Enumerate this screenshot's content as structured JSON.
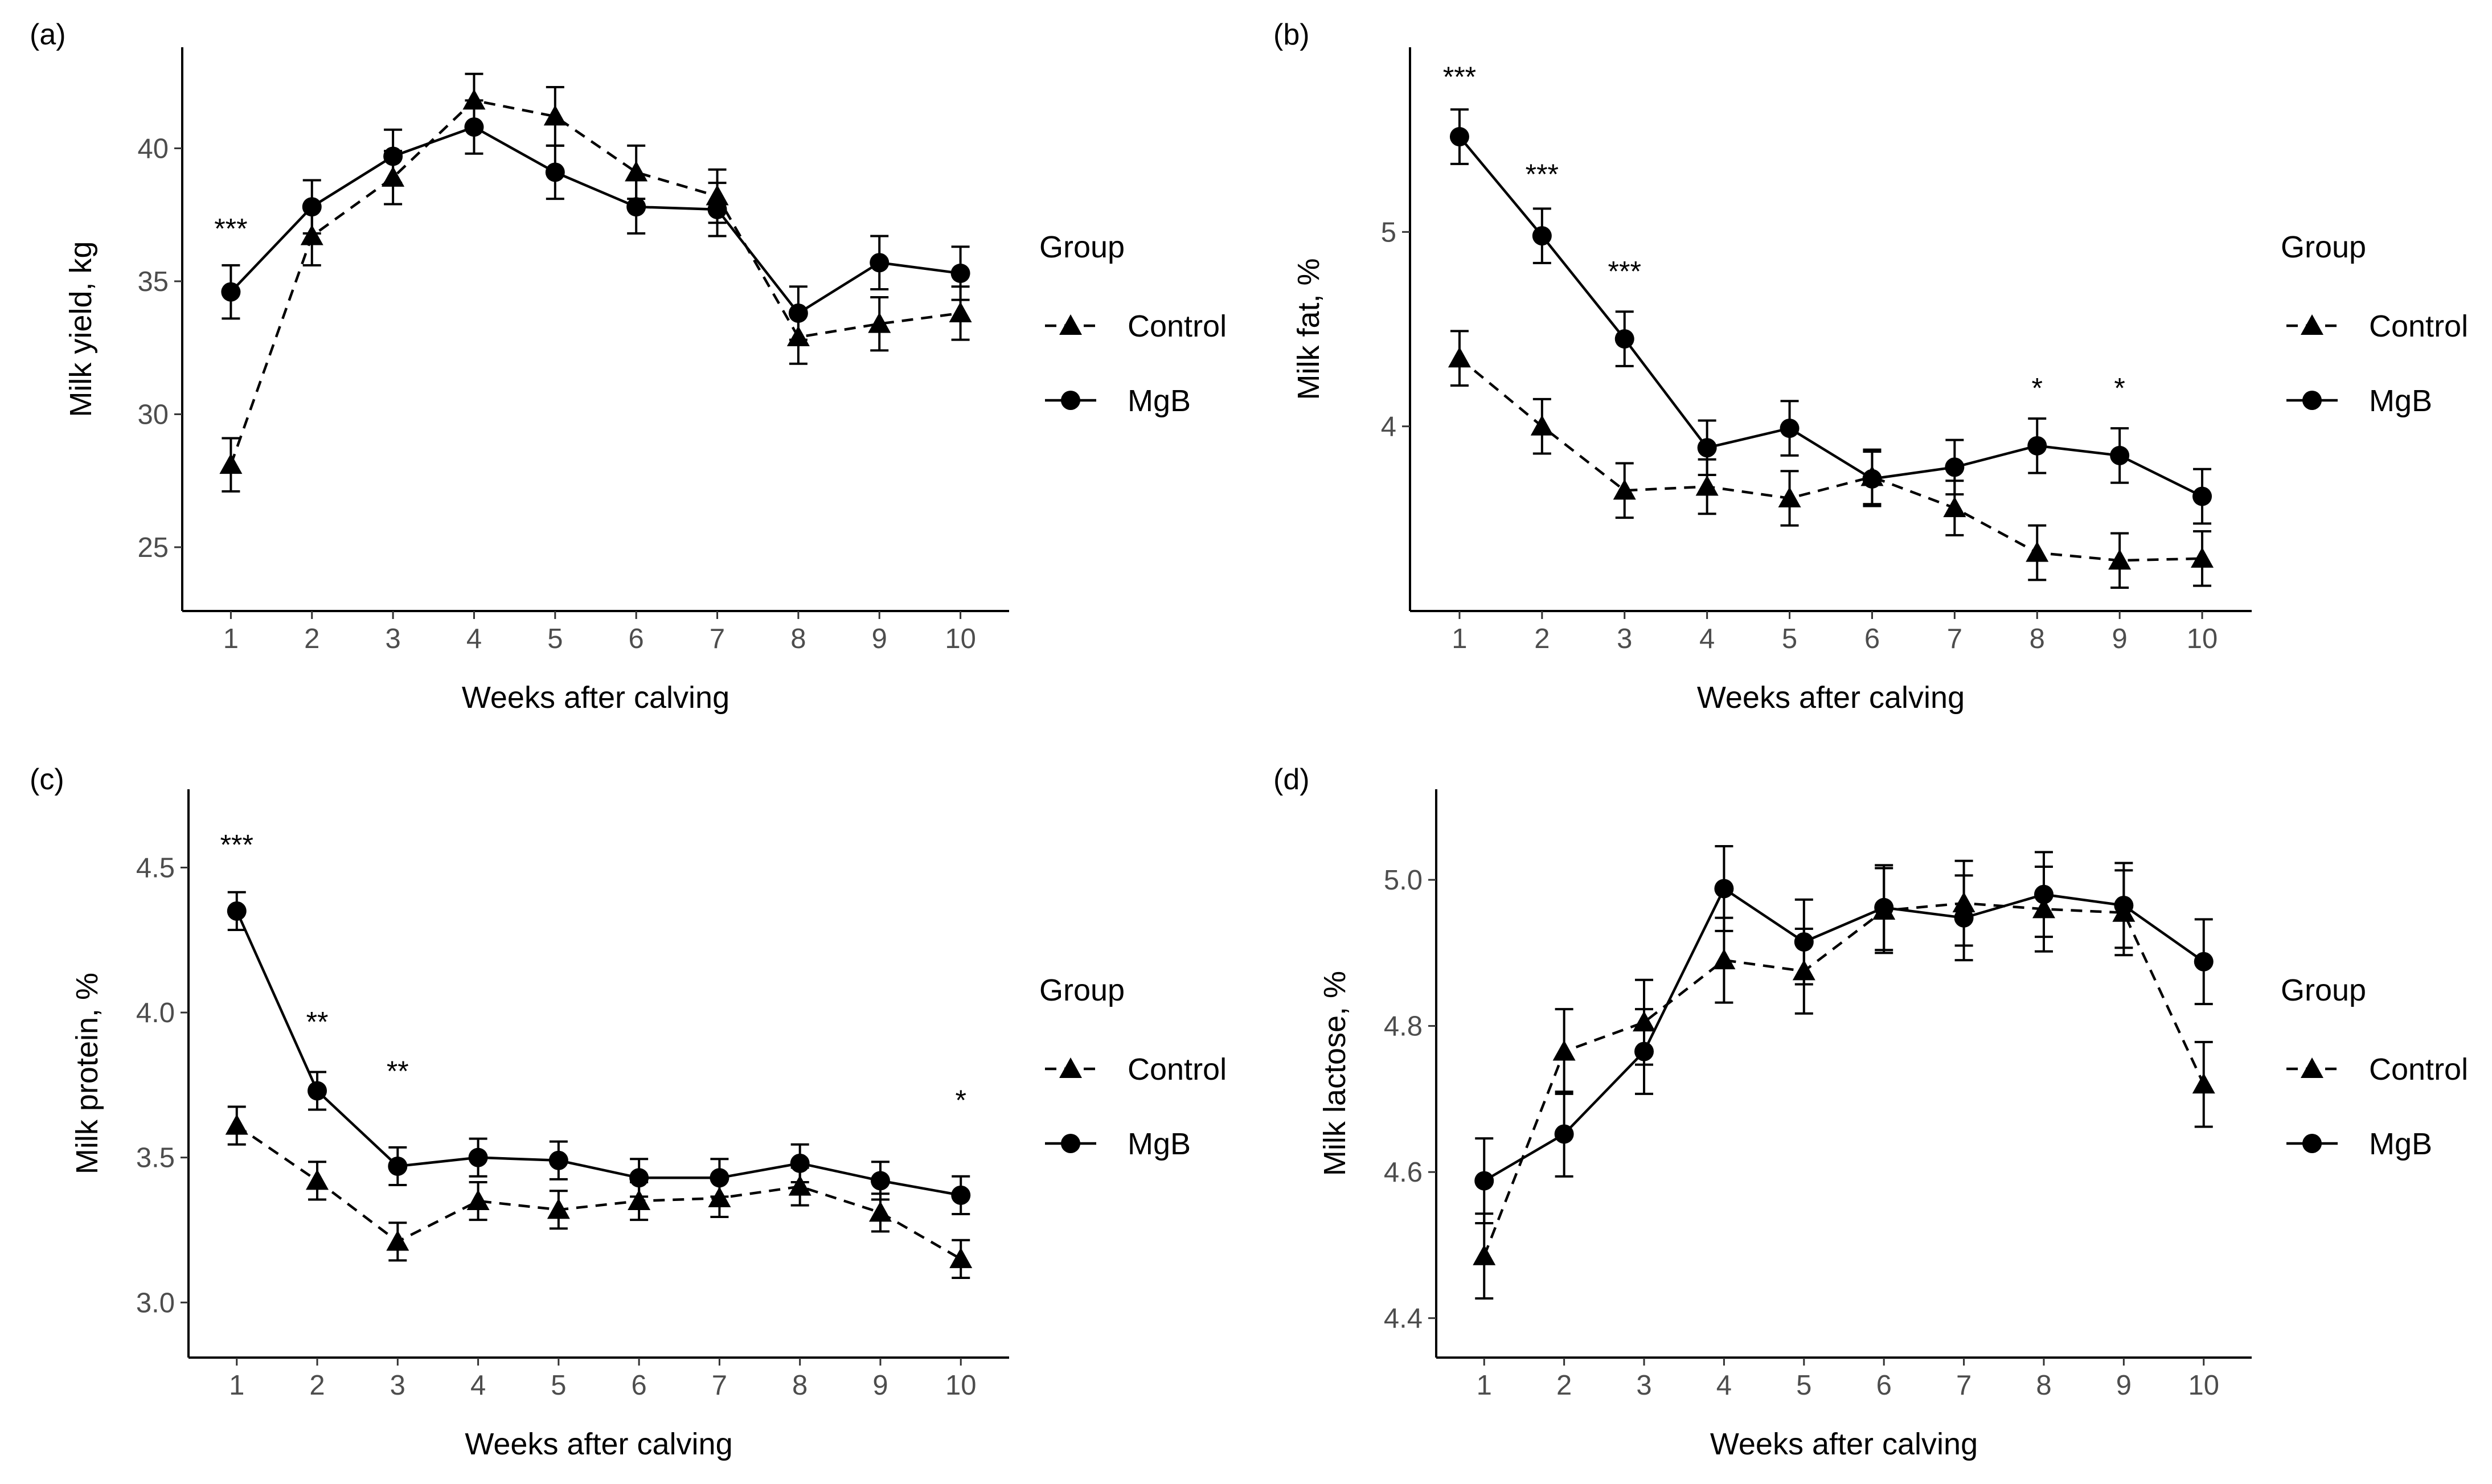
{
  "chart_data": [
    {
      "id": "a",
      "type": "line",
      "panel_label": "(a)",
      "xlabel": "Weeks after calving",
      "ylabel": "Milk yield, kg",
      "x": [
        1,
        2,
        3,
        4,
        5,
        6,
        7,
        8,
        9,
        10
      ],
      "xlim": [
        0.4,
        10.6
      ],
      "ylim": [
        22.6,
        43.8
      ],
      "yticks": [
        25,
        30,
        35,
        40
      ],
      "ytick_labels": [
        "25",
        "30",
        "35",
        "40"
      ],
      "series": [
        {
          "name": "Control",
          "marker": "triangle",
          "dash": true,
          "values": [
            28.1,
            36.7,
            38.9,
            41.8,
            41.2,
            39.1,
            38.2,
            32.9,
            33.4,
            33.8
          ],
          "errors": [
            1.0,
            1.1,
            1.0,
            1.0,
            1.1,
            1.0,
            1.0,
            1.0,
            1.0,
            1.0
          ]
        },
        {
          "name": "MgB",
          "marker": "circle",
          "dash": false,
          "values": [
            34.6,
            37.8,
            39.7,
            40.8,
            39.1,
            37.8,
            37.7,
            33.8,
            35.7,
            35.3
          ],
          "errors": [
            1.0,
            1.0,
            1.0,
            1.0,
            1.0,
            1.0,
            1.0,
            1.0,
            1.0,
            1.0
          ]
        }
      ],
      "significance": [
        {
          "x": 1,
          "label": "***",
          "y": 37.0
        }
      ],
      "legend_title": "Group"
    },
    {
      "id": "b",
      "type": "line",
      "panel_label": "(b)",
      "xlabel": "Weeks after calving",
      "ylabel": "Milk fat, %",
      "x": [
        1,
        2,
        3,
        4,
        5,
        6,
        7,
        8,
        9,
        10
      ],
      "xlim": [
        0.4,
        10.6
      ],
      "ylim": [
        3.05,
        5.95
      ],
      "yticks": [
        4,
        5
      ],
      "ytick_labels": [
        "4",
        "5"
      ],
      "series": [
        {
          "name": "Control",
          "marker": "triangle",
          "dash": true,
          "values": [
            4.35,
            4.0,
            3.67,
            3.69,
            3.63,
            3.74,
            3.58,
            3.35,
            3.31,
            3.32
          ],
          "errors": [
            0.14,
            0.14,
            0.14,
            0.14,
            0.14,
            0.14,
            0.14,
            0.14,
            0.14,
            0.14
          ]
        },
        {
          "name": "MgB",
          "marker": "circle",
          "dash": false,
          "values": [
            5.49,
            4.98,
            4.45,
            3.89,
            3.99,
            3.73,
            3.79,
            3.9,
            3.85,
            3.64
          ],
          "errors": [
            0.14,
            0.14,
            0.14,
            0.14,
            0.14,
            0.14,
            0.14,
            0.14,
            0.14,
            0.14
          ]
        }
      ],
      "significance": [
        {
          "x": 1,
          "label": "***",
          "y": 5.8
        },
        {
          "x": 2,
          "label": "***",
          "y": 5.3
        },
        {
          "x": 3,
          "label": "***",
          "y": 4.8
        },
        {
          "x": 8,
          "label": "*",
          "y": 4.2
        },
        {
          "x": 9,
          "label": "*",
          "y": 4.2
        }
      ],
      "legend_title": "Group"
    },
    {
      "id": "c",
      "type": "line",
      "panel_label": "(c)",
      "xlabel": "Weeks after calving",
      "ylabel": "Milk protein, %",
      "x": [
        1,
        2,
        3,
        4,
        5,
        6,
        7,
        8,
        9,
        10
      ],
      "xlim": [
        0.4,
        10.6
      ],
      "ylim": [
        2.81,
        4.77
      ],
      "yticks": [
        3.0,
        3.5,
        4.0,
        4.5
      ],
      "ytick_labels": [
        "3.0",
        "3.5",
        "4.0",
        "4.5"
      ],
      "series": [
        {
          "name": "Control",
          "marker": "triangle",
          "dash": true,
          "values": [
            3.61,
            3.42,
            3.21,
            3.35,
            3.32,
            3.35,
            3.36,
            3.4,
            3.31,
            3.15
          ],
          "errors": [
            0.065,
            0.065,
            0.065,
            0.065,
            0.065,
            0.065,
            0.065,
            0.065,
            0.065,
            0.065
          ]
        },
        {
          "name": "MgB",
          "marker": "circle",
          "dash": false,
          "values": [
            4.35,
            3.73,
            3.47,
            3.5,
            3.49,
            3.43,
            3.43,
            3.48,
            3.42,
            3.37
          ],
          "errors": [
            0.065,
            0.065,
            0.065,
            0.065,
            0.065,
            0.065,
            0.065,
            0.065,
            0.065,
            0.065
          ]
        }
      ],
      "significance": [
        {
          "x": 1,
          "label": "***",
          "y": 4.58
        },
        {
          "x": 2,
          "label": "**",
          "y": 3.97
        },
        {
          "x": 3,
          "label": "**",
          "y": 3.8
        },
        {
          "x": 10,
          "label": "*",
          "y": 3.7
        }
      ],
      "legend_title": "Group"
    },
    {
      "id": "d",
      "type": "line",
      "panel_label": "(d)",
      "xlabel": "Weeks after calving",
      "ylabel": "Milk lactose, %",
      "x": [
        1,
        2,
        3,
        4,
        5,
        6,
        7,
        8,
        9,
        10
      ],
      "xlim": [
        0.4,
        10.6
      ],
      "ylim": [
        4.346,
        5.124
      ],
      "yticks": [
        4.4,
        4.6,
        4.8,
        5.0
      ],
      "ytick_labels": [
        "4.4",
        "4.6",
        "4.8",
        "5.0"
      ],
      "series": [
        {
          "name": "Control",
          "marker": "triangle",
          "dash": true,
          "values": [
            4.485,
            4.765,
            4.805,
            4.89,
            4.875,
            4.958,
            4.968,
            4.96,
            4.955,
            4.72
          ],
          "errors": [
            0.058,
            0.058,
            0.058,
            0.058,
            0.058,
            0.058,
            0.058,
            0.058,
            0.058,
            0.058
          ]
        },
        {
          "name": "MgB",
          "marker": "circle",
          "dash": false,
          "values": [
            4.588,
            4.652,
            4.765,
            4.988,
            4.915,
            4.962,
            4.948,
            4.98,
            4.965,
            4.888
          ],
          "errors": [
            0.058,
            0.058,
            0.058,
            0.058,
            0.058,
            0.058,
            0.058,
            0.058,
            0.058,
            0.058
          ]
        }
      ],
      "significance": [],
      "legend_title": "Group"
    }
  ]
}
